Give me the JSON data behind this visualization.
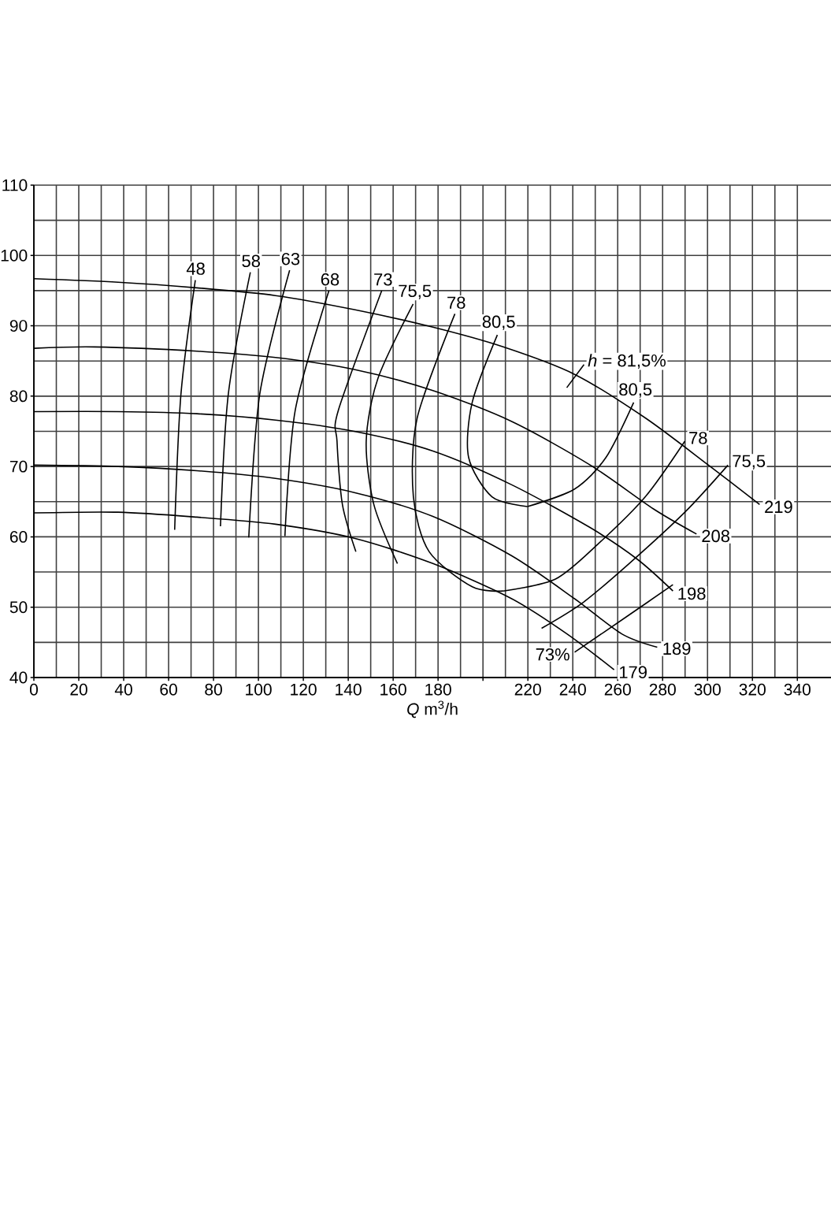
{
  "chart_data": {
    "type": "line",
    "xlabel": "*Q* m$^{3}$/h",
    "xlim": [
      0,
      355
    ],
    "ylim": [
      40,
      110
    ],
    "xticks": [
      0,
      20,
      40,
      60,
      80,
      100,
      120,
      140,
      160,
      180,
      {
        "value": 200,
        "label": null
      },
      220,
      240,
      260,
      280,
      300,
      320,
      340
    ],
    "yticks": [
      40,
      50,
      60,
      70,
      80,
      90,
      100,
      110
    ],
    "grid": true,
    "series": [
      {
        "name": "219",
        "color": "#000000",
        "x": [
          323.2,
          300.4,
          272.3,
          240.8,
          209,
          177.7,
          142.7,
          107.6,
          72.6,
          37.5,
          0
        ],
        "values": [
          64.6,
          70.2,
          76.9,
          83.1,
          87.0,
          89.8,
          92.3,
          94.3,
          95.4,
          96.2,
          96.7
        ]
      },
      {
        "name": "208",
        "color": "#000000",
        "x": [
          295.1,
          275.8,
          247.8,
          212.8,
          177.7,
          142.7,
          107.6,
          72.6,
          27,
          0
        ],
        "values": [
          60.4,
          64.0,
          70.2,
          76.4,
          80.8,
          83.8,
          85.5,
          86.4,
          87.0,
          86.8
        ]
      },
      {
        "name": "198",
        "color": "#000000",
        "x": [
          284.6,
          268.8,
          247.8,
          212.8,
          177.7,
          142.7,
          107.6,
          72.6,
          37.5,
          0
        ],
        "values": [
          52.3,
          56.8,
          61.3,
          67.4,
          72.2,
          75.0,
          76.6,
          77.5,
          77.8,
          77.8
        ]
      },
      {
        "name": "189",
        "color": "#000000",
        "x": [
          277.6,
          261.8,
          240.8,
          212.8,
          177.7,
          142.7,
          107.6,
          72.6,
          37.5,
          0
        ],
        "values": [
          44.3,
          46.2,
          51.2,
          57.3,
          62.9,
          66.3,
          68.3,
          69.4,
          70.0,
          70.2
        ]
      },
      {
        "name": "179",
        "color": "#000000",
        "x": [
          258.4,
          237.4,
          212.8,
          177.7,
          142.7,
          107.6,
          72.6,
          37.5,
          0
        ],
        "values": [
          41.1,
          46.2,
          51.2,
          56.2,
          59.8,
          61.8,
          62.8,
          63.5,
          63.4
        ]
      },
      {
        "name": "48",
        "color": "#000000",
        "x": [
          71.9,
          65.5,
          62.7
        ],
        "values": [
          96.5,
          80.3,
          61.0
        ]
      },
      {
        "name": "58",
        "color": "#000000",
        "x": [
          96.4,
          86.6,
          83.1
        ],
        "values": [
          97.6,
          80.3,
          61.5
        ]
      },
      {
        "name": "63",
        "color": "#000000",
        "x": [
          113.9,
          100.6,
          95.7
        ],
        "values": [
          97.9,
          80.3,
          59.9
        ]
      },
      {
        "name": "68",
        "color": "#000000",
        "x": [
          131.4,
          116.4,
          111.8
        ],
        "values": [
          95.0,
          78.0,
          60.1
        ]
      },
      {
        "name": "73",
        "color": "#000000",
        "x": [
          154.9,
          135.6,
          135,
          137.4,
          143.4
        ],
        "values": [
          95.0,
          78.0,
          73.6,
          64.6,
          57.9
        ]
      },
      {
        "name": "75,5",
        "color": "#000000",
        "x": [
          168.9,
          153.2,
          148,
          151.4,
          161.9
        ],
        "values": [
          93.1,
          82.5,
          73.6,
          64.6,
          56.2
        ]
      },
      {
        "name": "78",
        "color": "#000000",
        "x": [
          187.5,
          170.7,
          169,
          176,
          195.2,
          209
        ],
        "values": [
          91.7,
          76.9,
          65.7,
          57.9,
          52.9,
          52.3
        ]
      },
      {
        "name": "78",
        "color": "#000000",
        "x": [
          289.9,
          272.3,
          251.3,
          232.3,
          209
        ],
        "values": [
          73.6,
          65.7,
          59.0,
          54.0,
          52.3
        ]
      },
      {
        "name": "80,5",
        "color": "#000000",
        "x": [
          206.4,
          195.2,
          193.6,
          204,
          219.8
        ],
        "values": [
          88.7,
          79.1,
          71.3,
          65.7,
          64.3
        ]
      },
      {
        "name": "80,5",
        "color": "#000000",
        "x": [
          267.1,
          254.8,
          240.8,
          219.8
        ],
        "values": [
          79.1,
          71.3,
          66.8,
          64.3
        ]
      },
      {
        "name": "75,5",
        "color": "#000000",
        "x": [
          309.1,
          289.9,
          265.1,
          244.3,
          226.1
        ],
        "values": [
          70.2,
          63.5,
          56.2,
          50.6,
          47.0
        ]
      },
      {
        "name": "73%",
        "color": "#000000",
        "x": [
          240.8,
          265.1,
          284.6
        ],
        "values": [
          43.6,
          48.9,
          53.2
        ]
      },
      {
        "name": "*h* = 81,5%",
        "color": "#000000",
        "x": [
          245,
          237.3
        ],
        "values": [
          84.5,
          81.2
        ]
      }
    ]
  }
}
